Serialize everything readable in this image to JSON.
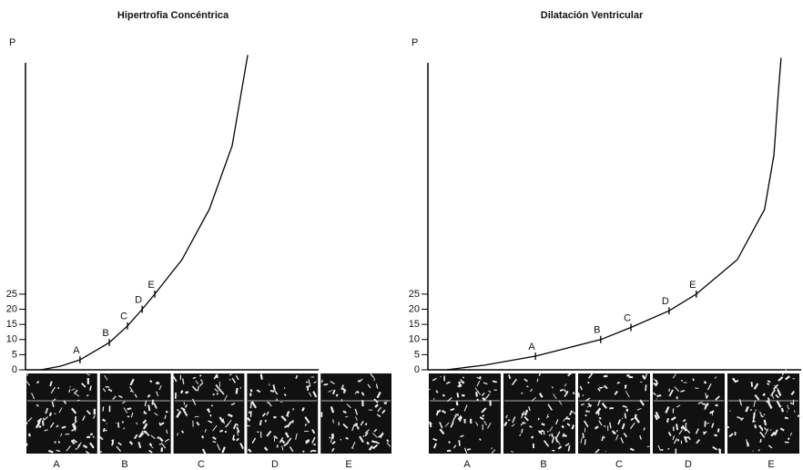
{
  "chart_data": [
    {
      "type": "line",
      "title": "Hipertrofia Concéntrica",
      "ylabel": "P",
      "ylim": [
        0,
        105
      ],
      "yticks": [
        0,
        5,
        10,
        15,
        20,
        25
      ],
      "xlim": [
        0,
        100
      ],
      "color": "#000000",
      "x": [
        5.3,
        12,
        18.6,
        28.6,
        34.8,
        39.8,
        44.1,
        53.4,
        62.7,
        70.5,
        75.8
      ],
      "values": [
        0,
        1.2,
        3.3,
        9,
        14.5,
        20,
        25,
        36.4,
        53,
        74,
        104
      ],
      "points": {
        "labels": [
          "A",
          "B",
          "C",
          "D",
          "E"
        ],
        "x": [
          18.6,
          28.6,
          34.8,
          39.8,
          44.1
        ],
        "values": [
          3.3,
          9,
          14.5,
          20,
          25
        ]
      }
    },
    {
      "type": "line",
      "title": "Dilatación Ventricular",
      "ylabel": "P",
      "ylim": [
        0,
        105
      ],
      "yticks": [
        0,
        5,
        10,
        15,
        20,
        25
      ],
      "xlim": [
        0,
        100
      ],
      "color": "#000000",
      "x": [
        4.9,
        15,
        28.8,
        46.3,
        54.4,
        64.6,
        71.9,
        82.9,
        90.2,
        92.7,
        93.9,
        94.6
      ],
      "values": [
        0,
        1.5,
        4.5,
        10,
        14,
        19.5,
        25,
        36.4,
        53,
        71,
        92,
        103
      ],
      "points": {
        "labels": [
          "A",
          "B",
          "C",
          "D",
          "E"
        ],
        "x": [
          28.8,
          46.3,
          54.4,
          64.6,
          71.9
        ],
        "values": [
          4.5,
          10,
          14,
          19.5,
          25
        ]
      }
    }
  ]
}
